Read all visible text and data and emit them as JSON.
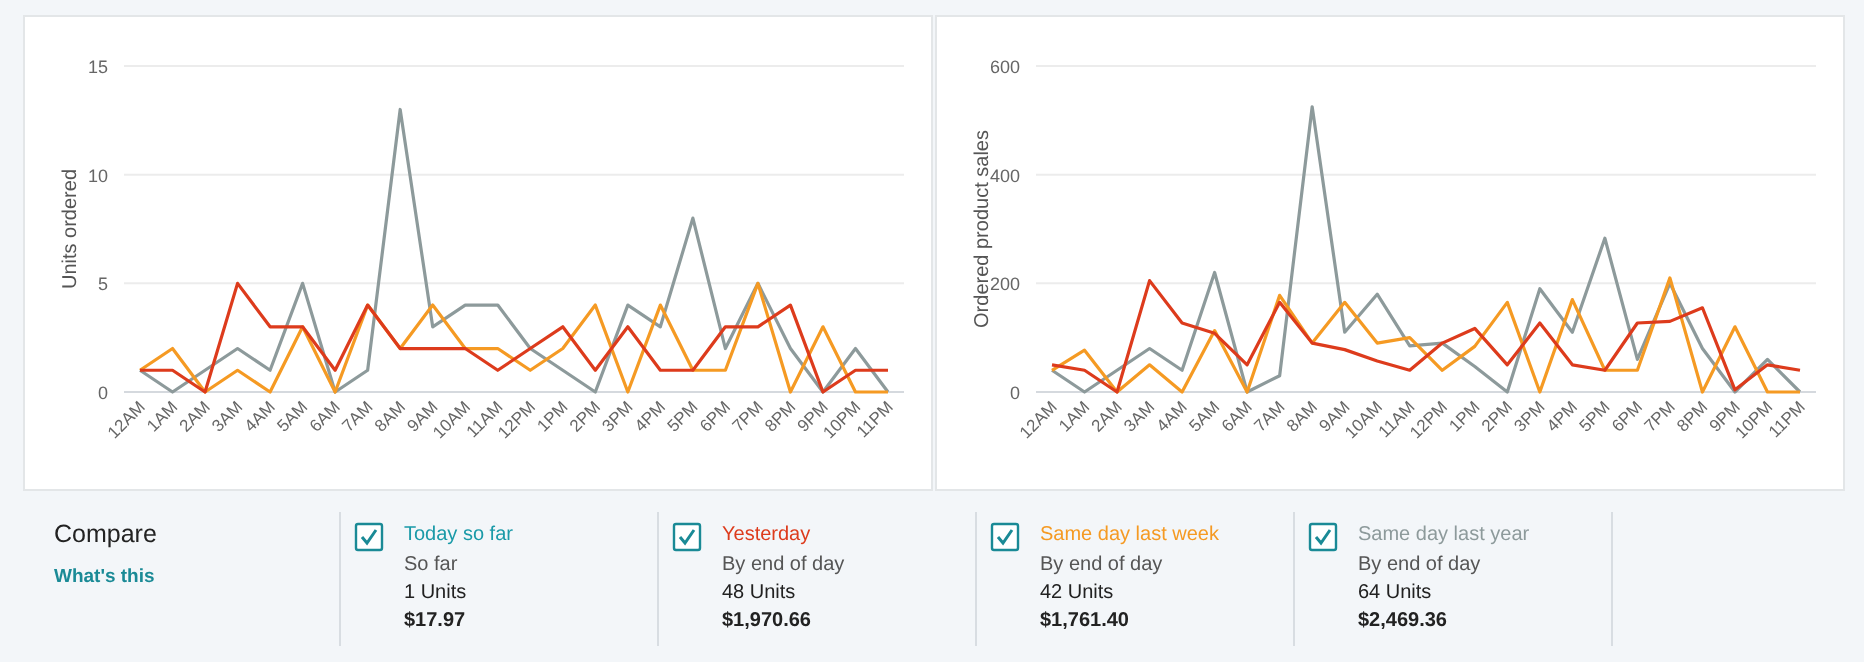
{
  "chart_data": [
    {
      "type": "line",
      "ylabel": "Units ordered",
      "categories": [
        "12AM",
        "1AM",
        "2AM",
        "3AM",
        "4AM",
        "5AM",
        "6AM",
        "7AM",
        "8AM",
        "9AM",
        "10AM",
        "11AM",
        "12PM",
        "1PM",
        "2PM",
        "3PM",
        "4PM",
        "5PM",
        "6PM",
        "7PM",
        "8PM",
        "9PM",
        "10PM",
        "11PM"
      ],
      "ylim": [
        0,
        15
      ],
      "yticks": [
        0,
        5,
        10,
        15
      ],
      "grid": "y",
      "marker": "none",
      "line_style": "solid",
      "series": [
        {
          "color": "#8d9a9b",
          "values": [
            1,
            0,
            1,
            2,
            1,
            5,
            0,
            1,
            13,
            3,
            4,
            4,
            2,
            1,
            0,
            4,
            3,
            8,
            2,
            5,
            2,
            0,
            2,
            0
          ]
        },
        {
          "color": "#f59a23",
          "values": [
            1,
            2,
            0,
            1,
            0,
            3,
            0,
            4,
            2,
            4,
            2,
            2,
            1,
            2,
            4,
            0,
            4,
            1,
            1,
            5,
            0,
            3,
            0,
            0
          ]
        },
        {
          "color": "#dd3b1c",
          "values": [
            1,
            1,
            0,
            5,
            3,
            3,
            1,
            4,
            2,
            2,
            2,
            1,
            2,
            3,
            1,
            3,
            1,
            1,
            3,
            3,
            4,
            0,
            1,
            1
          ]
        }
      ]
    },
    {
      "type": "line",
      "ylabel": "Ordered product sales",
      "categories": [
        "12AM",
        "1AM",
        "2AM",
        "3AM",
        "4AM",
        "5AM",
        "6AM",
        "7AM",
        "8AM",
        "9AM",
        "10AM",
        "11AM",
        "12PM",
        "1PM",
        "2PM",
        "3PM",
        "4PM",
        "5PM",
        "6PM",
        "7PM",
        "8PM",
        "9PM",
        "10PM",
        "11PM"
      ],
      "ylim": [
        0,
        600
      ],
      "yticks": [
        0,
        200,
        400,
        600
      ],
      "grid": "y",
      "marker": "none",
      "line_style": "solid",
      "series": [
        {
          "color": "#8d9a9b",
          "values": [
            40,
            0,
            40,
            80,
            40,
            220,
            0,
            30,
            525,
            110,
            180,
            85,
            90,
            47,
            0,
            190,
            110,
            283,
            60,
            200,
            80,
            0,
            60,
            0
          ]
        },
        {
          "color": "#f59a23",
          "values": [
            40,
            77,
            0,
            50,
            0,
            113,
            0,
            178,
            90,
            165,
            90,
            100,
            40,
            84,
            165,
            0,
            170,
            40,
            40,
            210,
            0,
            120,
            0,
            0
          ]
        },
        {
          "color": "#dd3b1c",
          "values": [
            50,
            40,
            0,
            205,
            127,
            108,
            50,
            165,
            90,
            78,
            57,
            40,
            90,
            117,
            50,
            127,
            50,
            40,
            127,
            130,
            155,
            4,
            50,
            40
          ]
        }
      ]
    },
    {
      "type": "other",
      "title": "Compare",
      "colors": [
        "#1a9aa8",
        "#dd3b1c",
        "#f59a23",
        "#8d9a9b"
      ],
      "annotations": [
        "What's this",
        "Today so far",
        "So far",
        "1 Units",
        "$17.97",
        "Yesterday",
        "By end of day",
        "48 Units",
        "$1,970.66",
        "Same day last week",
        "By end of day",
        "42 Units",
        "$1,761.40",
        "Same day last year",
        "By end of day",
        "64 Units",
        "$2,469.36"
      ]
    }
  ]
}
